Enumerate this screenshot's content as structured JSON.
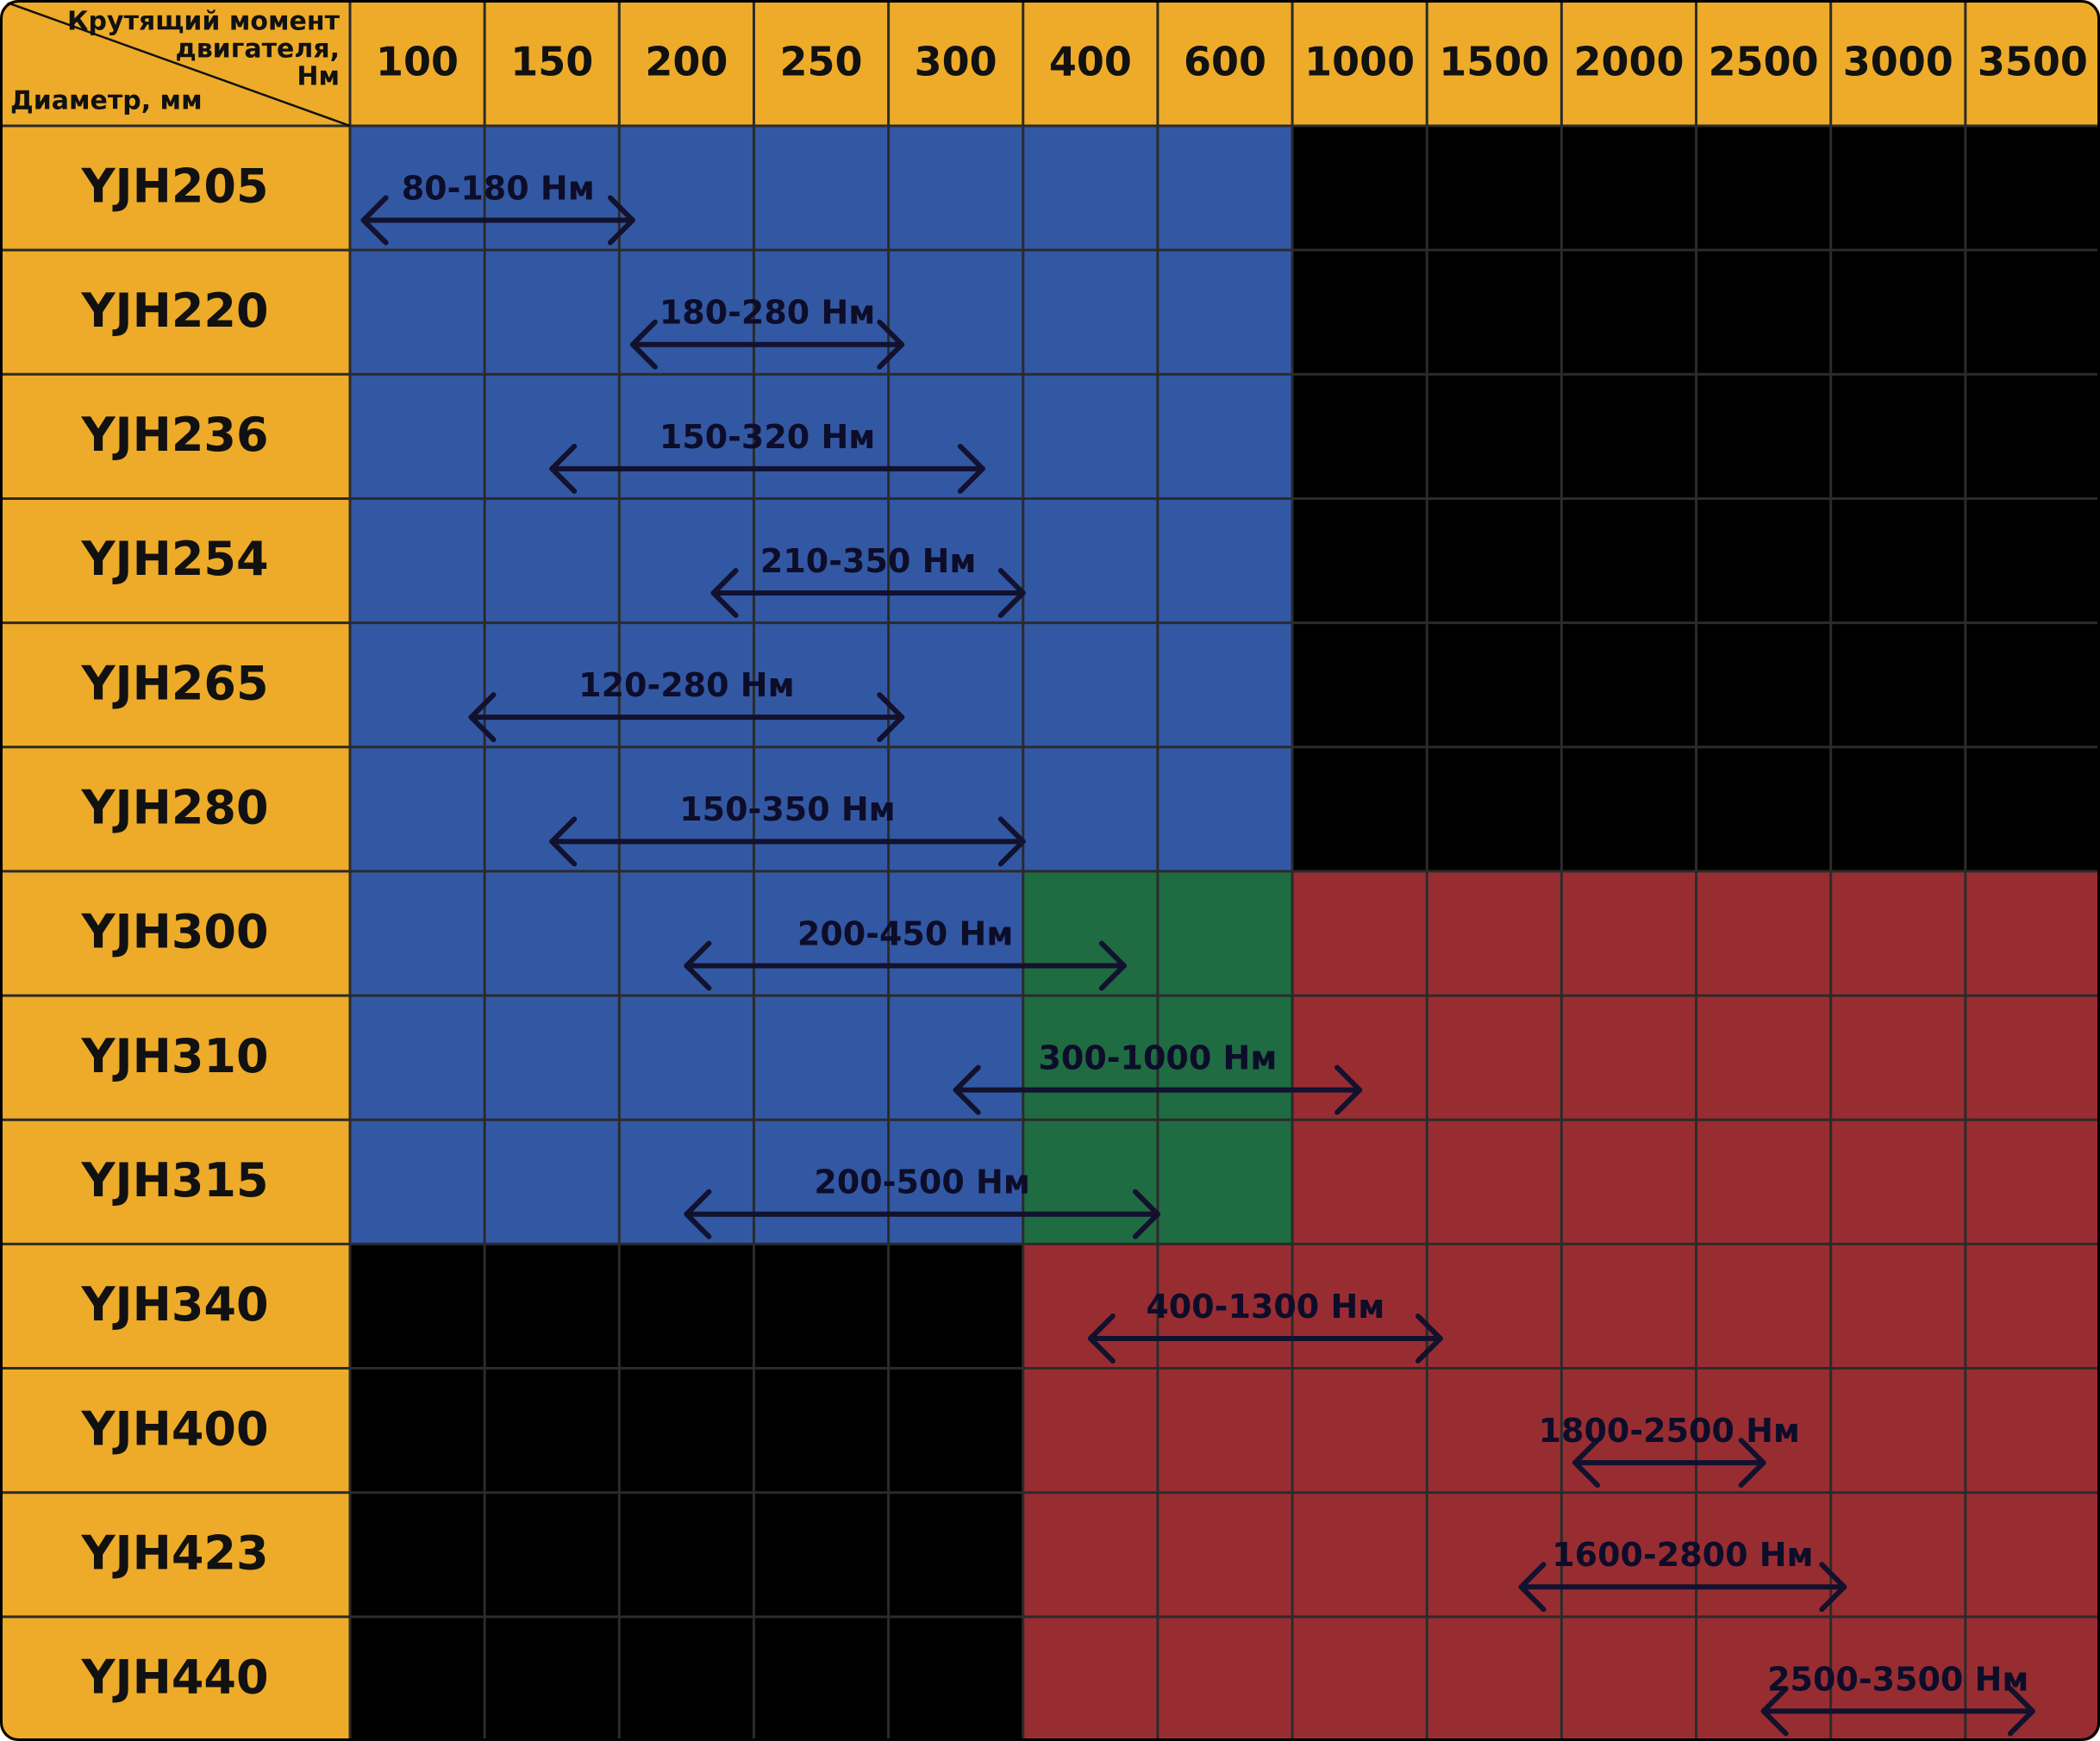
{
  "colors": {
    "header": "#EDAB29",
    "blue": "#3358A3",
    "green": "#1F6B42",
    "red": "#982D31",
    "black": "#000000",
    "arrow": "#12112E"
  },
  "chart_data": {
    "type": "table",
    "corner": {
      "top_label_lines": [
        "Крутящий момент",
        "двигателя,",
        "Нм"
      ],
      "bottom_label": "Диаметр, мм"
    },
    "columns": [
      "100",
      "150",
      "200",
      "250",
      "300",
      "400",
      "600",
      "1000",
      "1500",
      "2000",
      "2500",
      "3000",
      "3500"
    ],
    "rows": [
      {
        "label": "YJH205",
        "cells": [
          "blue",
          "blue",
          "blue",
          "blue",
          "blue",
          "blue",
          "blue",
          "black",
          "black",
          "black",
          "black",
          "black",
          "black"
        ],
        "range": {
          "label": "80-180 Нм",
          "from": 80,
          "to": 180
        }
      },
      {
        "label": "YJH220",
        "cells": [
          "blue",
          "blue",
          "blue",
          "blue",
          "blue",
          "blue",
          "blue",
          "black",
          "black",
          "black",
          "black",
          "black",
          "black"
        ],
        "range": {
          "label": "180-280 Нм",
          "from": 180,
          "to": 280
        }
      },
      {
        "label": "YJH236",
        "cells": [
          "blue",
          "blue",
          "blue",
          "blue",
          "blue",
          "blue",
          "blue",
          "black",
          "black",
          "black",
          "black",
          "black",
          "black"
        ],
        "range": {
          "label": "150-320 Нм",
          "from": 150,
          "to": 320
        }
      },
      {
        "label": "YJH254",
        "cells": [
          "blue",
          "blue",
          "blue",
          "blue",
          "blue",
          "blue",
          "blue",
          "black",
          "black",
          "black",
          "black",
          "black",
          "black"
        ],
        "range": {
          "label": "210-350 Нм",
          "from": 210,
          "to": 350
        }
      },
      {
        "label": "YJH265",
        "cells": [
          "blue",
          "blue",
          "blue",
          "blue",
          "blue",
          "blue",
          "blue",
          "black",
          "black",
          "black",
          "black",
          "black",
          "black"
        ],
        "range": {
          "label": "120-280 Нм",
          "from": 120,
          "to": 280
        }
      },
      {
        "label": "YJH280",
        "cells": [
          "blue",
          "blue",
          "blue",
          "blue",
          "blue",
          "blue",
          "blue",
          "black",
          "black",
          "black",
          "black",
          "black",
          "black"
        ],
        "range": {
          "label": "150-350 Нм",
          "from": 150,
          "to": 350
        }
      },
      {
        "label": "YJH300",
        "cells": [
          "blue",
          "blue",
          "blue",
          "blue",
          "blue",
          "green",
          "green",
          "red",
          "red",
          "red",
          "red",
          "red",
          "red"
        ],
        "range": {
          "label": "200-450 Нм",
          "from": 200,
          "to": 450
        }
      },
      {
        "label": "YJH310",
        "cells": [
          "blue",
          "blue",
          "blue",
          "blue",
          "blue",
          "green",
          "green",
          "red",
          "red",
          "red",
          "red",
          "red",
          "red"
        ],
        "range": {
          "label": "300-1000 Нм",
          "from": 300,
          "to": 1000
        }
      },
      {
        "label": "YJH315",
        "cells": [
          "blue",
          "blue",
          "blue",
          "blue",
          "blue",
          "green",
          "green",
          "red",
          "red",
          "red",
          "red",
          "red",
          "red"
        ],
        "range": {
          "label": "200-500 Нм",
          "from": 200,
          "to": 500
        }
      },
      {
        "label": "YJH340",
        "cells": [
          "black",
          "black",
          "black",
          "black",
          "black",
          "red",
          "red",
          "red",
          "red",
          "red",
          "red",
          "red",
          "red"
        ],
        "range": {
          "label": "400-1300 Нм",
          "from": 400,
          "to": 1300
        }
      },
      {
        "label": "YJH400",
        "cells": [
          "black",
          "black",
          "black",
          "black",
          "black",
          "red",
          "red",
          "red",
          "red",
          "red",
          "red",
          "red",
          "red"
        ],
        "range": {
          "label": "1800-2500 Нм",
          "from": 1800,
          "to": 2500
        }
      },
      {
        "label": "YJH423",
        "cells": [
          "black",
          "black",
          "black",
          "black",
          "black",
          "red",
          "red",
          "red",
          "red",
          "red",
          "red",
          "red",
          "red"
        ],
        "range": {
          "label": "1600-2800 Нм",
          "from": 1600,
          "to": 2800
        }
      },
      {
        "label": "YJH440",
        "cells": [
          "black",
          "black",
          "black",
          "black",
          "black",
          "red",
          "red",
          "red",
          "red",
          "red",
          "red",
          "red",
          "red"
        ],
        "range": {
          "label": "2500-3500 Нм",
          "from": 2500,
          "to": 3500
        }
      }
    ]
  }
}
